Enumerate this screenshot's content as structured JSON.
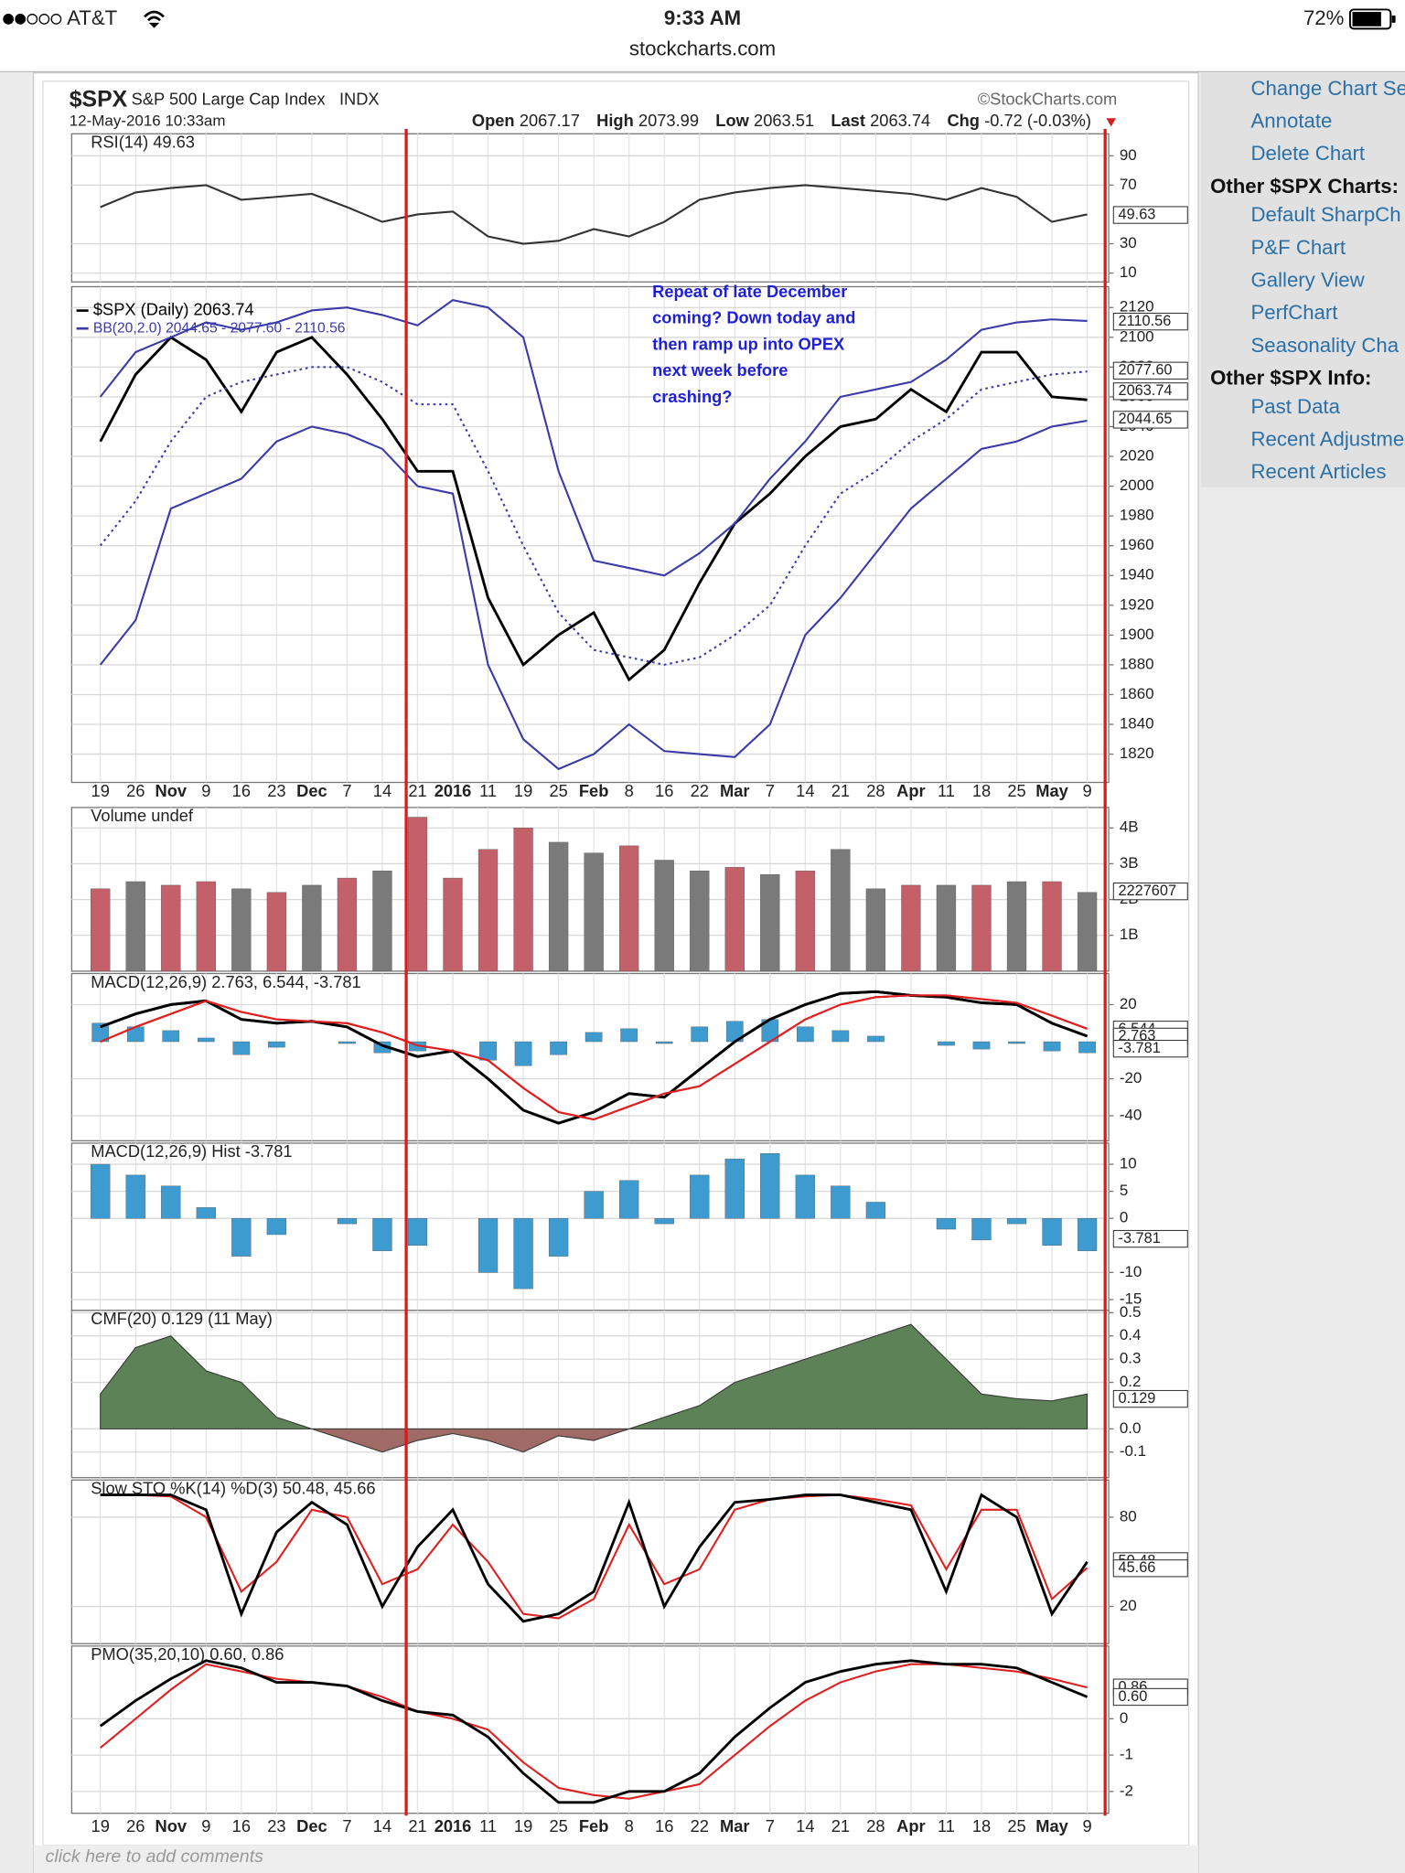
{
  "status_bar": {
    "carrier": "AT&T",
    "time": "9:33 AM",
    "battery": "72%",
    "url": "stockcharts.com"
  },
  "sidebar": [
    {
      "items": [
        "Change Chart Se",
        "Annotate",
        "Delete Chart"
      ]
    },
    {
      "heading": "Other $SPX Charts:",
      "items": [
        "Default SharpCh",
        "P&F Chart",
        "Gallery View",
        "PerfChart",
        "Seasonality Cha"
      ]
    },
    {
      "heading": "Other $SPX Info:",
      "items": [
        "Past Data",
        "Recent Adjustme",
        "Recent Articles"
      ]
    }
  ],
  "header": {
    "symbol": "$SPX",
    "name": "S&P 500 Large Cap Index",
    "exchange": "INDX",
    "date": "12-May-2016 10:33am",
    "watermark": "©StockCharts.com",
    "quote": [
      {
        "label": "Open",
        "value": 2067.17
      },
      {
        "label": "High",
        "value": 2073.99
      },
      {
        "label": "Low",
        "value": 2063.51
      },
      {
        "label": "Last",
        "value": 2063.74
      },
      {
        "label": "Chg",
        "value": "-0.72 (-0.03%)"
      }
    ]
  },
  "annotation": [
    "Repeat of late December",
    "coming?  Down today and",
    "then ramp up into OPEX",
    "next week before",
    "crashing?"
  ],
  "comment": "click here to add comments",
  "chart_data": [
    {
      "type": "line",
      "title": "RSI(14) 49.63",
      "ylim": [
        4,
        105
      ],
      "yticks": [
        90,
        70,
        30,
        10
      ],
      "grid": true,
      "series": [
        {
          "color": "#333333",
          "values": [
            55,
            65,
            68,
            70,
            60,
            62,
            64,
            55,
            45,
            50,
            52,
            35,
            30,
            32,
            40,
            35,
            45,
            60,
            65,
            68,
            70,
            68,
            66,
            64,
            60,
            68,
            62,
            45,
            50
          ]
        }
      ],
      "markers": [
        49.63
      ]
    },
    {
      "type": "line",
      "ylim": [
        1801,
        2134
      ],
      "yticks": [
        1820,
        1840,
        1860,
        1880,
        1900,
        1920,
        1940,
        1960,
        1980,
        2000,
        2020,
        2040,
        2060,
        2080,
        2100,
        2120
      ],
      "grid": true,
      "categories": [
        "19",
        "26",
        "Nov",
        "9",
        "16",
        "23",
        "Dec",
        "7",
        "14",
        "21",
        "2016",
        "11",
        "19",
        "25",
        "Feb",
        "8",
        "16",
        "22",
        "Mar",
        "7",
        "14",
        "21",
        "28",
        "Apr",
        "11",
        "18",
        "25",
        "May",
        "9"
      ],
      "series": [
        {
          "name": "$SPX (Daily) 2063.74",
          "color": "#000000",
          "values": [
            2030,
            2075,
            2100,
            2085,
            2050,
            2090,
            2100,
            2075,
            2045,
            2010,
            2010,
            1925,
            1880,
            1900,
            1915,
            1870,
            1890,
            1935,
            1975,
            1995,
            2020,
            2040,
            2045,
            2065,
            2050,
            2090,
            2090,
            2060,
            2058
          ]
        },
        {
          "name": "BB(20,2.0) 2044.65 - 2077.60 - 2110.56",
          "color": "#3a3aa8",
          "values": [
            2060,
            2090,
            2100,
            2110,
            2105,
            2110,
            2118,
            2120,
            2115,
            2108,
            2125,
            2120,
            2100,
            2010,
            1950,
            1945,
            1940,
            1955,
            1975,
            2005,
            2030,
            2060,
            2065,
            2070,
            2085,
            2105,
            2110,
            2112,
            2111
          ]
        },
        {
          "color": "#3a3aa8",
          "dashed": true,
          "values": [
            1960,
            1990,
            2030,
            2060,
            2070,
            2075,
            2080,
            2080,
            2070,
            2055,
            2055,
            2010,
            1960,
            1915,
            1890,
            1885,
            1880,
            1885,
            1900,
            1920,
            1960,
            1995,
            2010,
            2030,
            2045,
            2065,
            2070,
            2075,
            2077
          ]
        },
        {
          "color": "#3a3aa8",
          "values": [
            1880,
            1910,
            1985,
            1995,
            2005,
            2030,
            2040,
            2035,
            2025,
            2000,
            1995,
            1880,
            1830,
            1810,
            1820,
            1840,
            1822,
            1820,
            1818,
            1840,
            1900,
            1925,
            1955,
            1985,
            2005,
            2025,
            2030,
            2040,
            2044
          ]
        }
      ],
      "markers": [
        2110.56,
        {
          "value": 2077.6,
          "label": "2077.60"
        },
        2063.74,
        2044.65
      ]
    },
    {
      "type": "bar",
      "title": "Volume undef",
      "ylim": [
        0,
        4570000000
      ],
      "yticks": [
        {
          "value": 1000000000,
          "label": "1B"
        },
        {
          "value": 2000000000,
          "label": "2B"
        },
        {
          "value": 3000000000,
          "label": "3B"
        },
        {
          "value": 4000000000,
          "label": "4B"
        }
      ],
      "grid": true,
      "series": [
        {
          "values": [
            2300000000,
            2500000000,
            2400000000,
            2500000000,
            2300000000,
            2200000000,
            2400000000,
            2600000000,
            2800000000,
            4300000000,
            2600000000,
            3400000000,
            4000000000,
            3600000000,
            3300000000,
            3500000000,
            3100000000,
            2800000000,
            2900000000,
            2700000000,
            2800000000,
            3400000000,
            2300000000,
            2400000000,
            2400000000,
            2400000000,
            2500000000,
            2500000000,
            2200000000
          ],
          "colors": [
            "#c4606a",
            "#7a7a7a",
            "#c4606a",
            "#c4606a",
            "#7a7a7a",
            "#c4606a",
            "#7a7a7a",
            "#c4606a",
            "#7a7a7a",
            "#c4606a",
            "#c4606a",
            "#c4606a",
            "#c4606a",
            "#7a7a7a",
            "#7a7a7a",
            "#c4606a",
            "#7a7a7a",
            "#7a7a7a",
            "#c4606a",
            "#7a7a7a",
            "#c4606a",
            "#7a7a7a",
            "#7a7a7a",
            "#c4606a",
            "#7a7a7a",
            "#c4606a",
            "#7a7a7a",
            "#c4606a",
            "#7a7a7a"
          ]
        }
      ],
      "markers": [
        {
          "value": 2227607000,
          "label": "2227607"
        }
      ]
    },
    {
      "type": "line",
      "title": "MACD(12,26,9) 2.763, 6.544, -3.781",
      "ylim": [
        -53.5,
        36.8
      ],
      "yticks": [
        20,
        -20,
        -40
      ],
      "grid": true,
      "series": [
        {
          "color": "#000000",
          "values": [
            8,
            15,
            20,
            22,
            12,
            10,
            11,
            8,
            -2,
            -8,
            -5,
            -20,
            -37,
            -44,
            -38,
            -28,
            -30,
            -15,
            0,
            12,
            20,
            26,
            27,
            25,
            24,
            21,
            20,
            10,
            3
          ]
        },
        {
          "color": "#e02020",
          "values": [
            0,
            8,
            15,
            22,
            16,
            12,
            11,
            10,
            5,
            -2,
            -5,
            -10,
            -25,
            -38,
            -42,
            -35,
            -28,
            -24,
            -12,
            0,
            12,
            20,
            24,
            25,
            25,
            23,
            21,
            14,
            7
          ]
        }
      ],
      "markers": [
        6.544,
        2.763,
        -3.781
      ]
    },
    {
      "type": "bar",
      "title": "MACD(12,26,9) Hist -3.781",
      "ylim": [
        -17,
        13.9
      ],
      "yticks": [
        10,
        5,
        0,
        -10,
        -15
      ],
      "grid": true,
      "series": [
        {
          "color": "#3d9bd0",
          "values": [
            10,
            8,
            6,
            2,
            -7,
            -3,
            0,
            -1,
            -6,
            -5,
            0,
            -10,
            -13,
            -7,
            5,
            7,
            -1,
            8,
            11,
            12,
            8,
            6,
            3,
            0,
            -2,
            -4,
            -1,
            -5,
            -6
          ]
        }
      ],
      "markers": [
        -3.781
      ]
    },
    {
      "type": "area",
      "title": "CMF(20) 0.129 (11 May)",
      "ylim": [
        -0.21,
        0.51
      ],
      "yticks": [
        0.5,
        0.4,
        0.3,
        0.2,
        {
          "value": 0,
          "label": "0.0"
        },
        -0.1
      ],
      "grid": true,
      "series": [
        {
          "color": "#5e8257",
          "negative_color": "#a06a66",
          "values": [
            0.15,
            0.35,
            0.4,
            0.25,
            0.2,
            0.05,
            0,
            -0.05,
            -0.1,
            -0.05,
            -0.02,
            -0.05,
            -0.1,
            -0.03,
            -0.05,
            0,
            0.05,
            0.1,
            0.2,
            0.25,
            0.3,
            0.35,
            0.4,
            0.45,
            0.3,
            0.15,
            0.13,
            0.12,
            0.15
          ]
        }
      ],
      "markers": [
        0.129
      ]
    },
    {
      "type": "line",
      "title": "Slow STO %K(14) %D(3) 50.48, 45.66",
      "ylim": [
        -5,
        105
      ],
      "yticks": [
        80,
        20
      ],
      "grid": true,
      "series": [
        {
          "color": "#e02020",
          "values": [
            95,
            95,
            94,
            80,
            30,
            50,
            85,
            80,
            35,
            45,
            75,
            50,
            15,
            12,
            25,
            75,
            35,
            45,
            85,
            92,
            94,
            95,
            92,
            88,
            45,
            85,
            85,
            25,
            46
          ]
        },
        {
          "color": "#000000",
          "values": [
            95,
            95,
            95,
            85,
            15,
            70,
            90,
            75,
            20,
            60,
            85,
            35,
            10,
            15,
            30,
            90,
            20,
            60,
            90,
            92,
            95,
            95,
            90,
            85,
            30,
            95,
            80,
            15,
            50
          ]
        }
      ],
      "markers": [
        50.48,
        45.66
      ]
    },
    {
      "type": "line",
      "title": "PMO(35,20,10) 0.60, 0.86",
      "ylim": [
        -2.6,
        2.0
      ],
      "yticks": [
        0,
        -1,
        -2
      ],
      "grid": true,
      "series": [
        {
          "color": "#e02020",
          "values": [
            -0.8,
            0,
            0.8,
            1.5,
            1.3,
            1.1,
            1.0,
            0.9,
            0.6,
            0.2,
            0,
            -0.3,
            -1.2,
            -1.9,
            -2.1,
            -2.2,
            -2.0,
            -1.8,
            -1.0,
            -0.2,
            0.5,
            1.0,
            1.3,
            1.5,
            1.5,
            1.4,
            1.3,
            1.1,
            0.86
          ]
        },
        {
          "color": "#000000",
          "values": [
            -0.2,
            0.5,
            1.1,
            1.6,
            1.4,
            1.0,
            1.0,
            0.9,
            0.5,
            0.2,
            0.1,
            -0.5,
            -1.5,
            -2.3,
            -2.3,
            -2.0,
            -2.0,
            -1.5,
            -0.5,
            0.3,
            1.0,
            1.3,
            1.5,
            1.6,
            1.5,
            1.5,
            1.4,
            1.0,
            0.6
          ]
        }
      ],
      "markers": [
        0.86,
        {
          "value": 0.6,
          "label": "0.60"
        }
      ]
    }
  ]
}
